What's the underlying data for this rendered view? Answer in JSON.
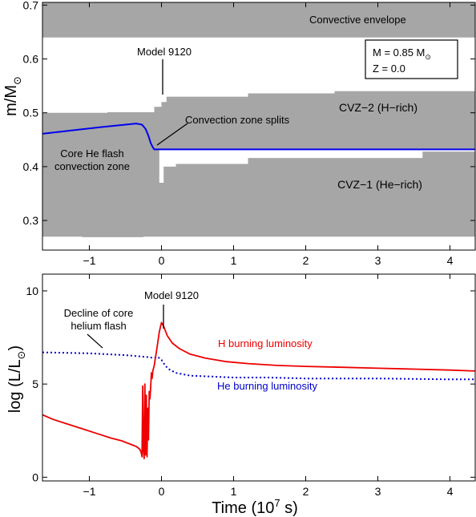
{
  "chart_data": [
    {
      "type": "area",
      "ylabel_main": "m/M",
      "ylabel_sub": "⊙",
      "xlim": [
        -1.65,
        4.35
      ],
      "ylim": [
        0.245,
        0.705
      ],
      "xticks": [
        -1,
        0,
        1,
        2,
        3,
        4
      ],
      "xtick_labels": [
        "−1",
        "0",
        "1",
        "2",
        "3",
        "4"
      ],
      "yticks": [
        0.3,
        0.4,
        0.5,
        0.6,
        0.7
      ],
      "ytick_labels": [
        "0.3",
        "0.4",
        "0.5",
        "0.6",
        "0.7"
      ],
      "grid": false,
      "colors": {
        "zone": "#a6a6a6",
        "line": "#0000ee"
      },
      "annotations": {
        "convective_envelope": "Convective envelope",
        "model": "Model 9120",
        "mass_main": "M = 0.85 M",
        "mass_sub": "⊙",
        "metallicity": "Z = 0.0",
        "core_flash_line1": "Core He flash",
        "core_flash_line2": "convection zone",
        "splits": "Convection zone splits",
        "cvz2": "CVZ−2 (H−rich)",
        "cvz1": "CVZ−1 (He−rich)"
      },
      "envelope": {
        "bottom": 0.64,
        "top": 0.705
      },
      "cvz_upper_boundary": [
        [
          -1.65,
          0.5
        ],
        [
          -0.75,
          0.5
        ],
        [
          -0.75,
          0.501
        ],
        [
          -0.1,
          0.501
        ],
        [
          -0.1,
          0.511
        ],
        [
          0,
          0.511
        ],
        [
          0,
          0.52
        ],
        [
          0.07,
          0.52
        ],
        [
          0.07,
          0.53
        ],
        [
          1.2,
          0.53
        ],
        [
          1.2,
          0.536
        ],
        [
          2.4,
          0.536
        ],
        [
          2.4,
          0.54
        ],
        [
          4.35,
          0.54
        ]
      ],
      "cvz_lower_boundary": [
        [
          -1.65,
          0.27
        ],
        [
          -1.1,
          0.27
        ],
        [
          -1.1,
          0.269
        ],
        [
          -0.25,
          0.269
        ],
        [
          -0.25,
          0.27
        ],
        [
          4.35,
          0.27
        ]
      ],
      "gap_bottom_boundary": [
        [
          -0.03,
          0.43
        ],
        [
          -0.03,
          0.37
        ],
        [
          0.03,
          0.37
        ],
        [
          0.03,
          0.4
        ],
        [
          0.2,
          0.4
        ],
        [
          0.2,
          0.405
        ],
        [
          1.2,
          0.405
        ],
        [
          1.2,
          0.416
        ],
        [
          3.62,
          0.416
        ],
        [
          3.62,
          0.428
        ],
        [
          4.35,
          0.428
        ]
      ],
      "gap_top": 0.432,
      "series": [
        {
          "x": [
            -1.65,
            -1.2,
            -0.8,
            -0.5,
            -0.35,
            -0.27,
            -0.22,
            -0.18,
            -0.15,
            -0.12,
            -0.1,
            4.35
          ],
          "y": [
            0.461,
            0.468,
            0.474,
            0.478,
            0.48,
            0.478,
            0.47,
            0.457,
            0.444,
            0.436,
            0.432,
            0.432
          ]
        }
      ]
    },
    {
      "type": "line",
      "xlabel": "Time (10",
      "xlabel_sup": "7",
      "xlabel_end": " s)",
      "ylabel_main": "log (L/L",
      "ylabel_sub": "⊙",
      "ylabel_end": ")",
      "xlim": [
        -1.65,
        4.35
      ],
      "ylim": [
        -0.2,
        10.9
      ],
      "xticks": [
        -1,
        0,
        1,
        2,
        3,
        4
      ],
      "xtick_labels": [
        "−1",
        "0",
        "1",
        "2",
        "3",
        "4"
      ],
      "yticks": [
        0,
        5,
        10
      ],
      "ytick_labels": [
        "0",
        "5",
        "10"
      ],
      "grid": false,
      "annotations": {
        "model": "Model 9120",
        "decline_line1": "Decline of core",
        "decline_line2": "helium flash"
      },
      "series": [
        {
          "name": "H burning luminosity",
          "color": "#ee0000",
          "x": [
            -1.65,
            -1.5,
            -1.3,
            -1.1,
            -0.9,
            -0.7,
            -0.55,
            -0.45,
            -0.35,
            -0.3,
            -0.28,
            -0.27,
            -0.26,
            -0.25,
            -0.24,
            -0.23,
            -0.22,
            -0.21,
            -0.2,
            -0.19,
            -0.18,
            -0.17,
            -0.16,
            -0.15,
            -0.14,
            -0.13,
            -0.12,
            -0.1,
            -0.08,
            -0.06,
            -0.03,
            0,
            0.03,
            0.08,
            0.15,
            0.25,
            0.4,
            0.6,
            0.9,
            1.2,
            1.6,
            2.0,
            2.5,
            3.0,
            3.5,
            4.0,
            4.35
          ],
          "y": [
            3.35,
            3.1,
            2.85,
            2.6,
            2.35,
            2.1,
            1.95,
            1.8,
            1.65,
            1.5,
            1.3,
            1.1,
            4.9,
            1.4,
            1.0,
            5.0,
            1.2,
            4.4,
            1.1,
            3.7,
            2.0,
            4.6,
            4.2,
            4.8,
            5.6,
            5.3,
            5.7,
            6.0,
            6.5,
            7.0,
            7.8,
            8.3,
            8.1,
            7.6,
            7.2,
            6.9,
            6.6,
            6.4,
            6.2,
            6.1,
            6.0,
            5.95,
            5.9,
            5.85,
            5.8,
            5.75,
            5.7
          ]
        },
        {
          "name": "He burning luminosity",
          "color": "#0000cc",
          "x": [
            -1.65,
            -1.0,
            -0.5,
            -0.2,
            -0.1,
            -0.05,
            0,
            0.05,
            0.1,
            0.2,
            0.4,
            0.7,
            1.0,
            1.5,
            2.0,
            3.0,
            4.0,
            4.35
          ],
          "y": [
            6.7,
            6.65,
            6.55,
            6.45,
            6.4,
            6.45,
            6.3,
            6.0,
            5.8,
            5.6,
            5.45,
            5.4,
            5.35,
            5.35,
            5.3,
            5.3,
            5.25,
            5.25
          ]
        }
      ]
    }
  ]
}
